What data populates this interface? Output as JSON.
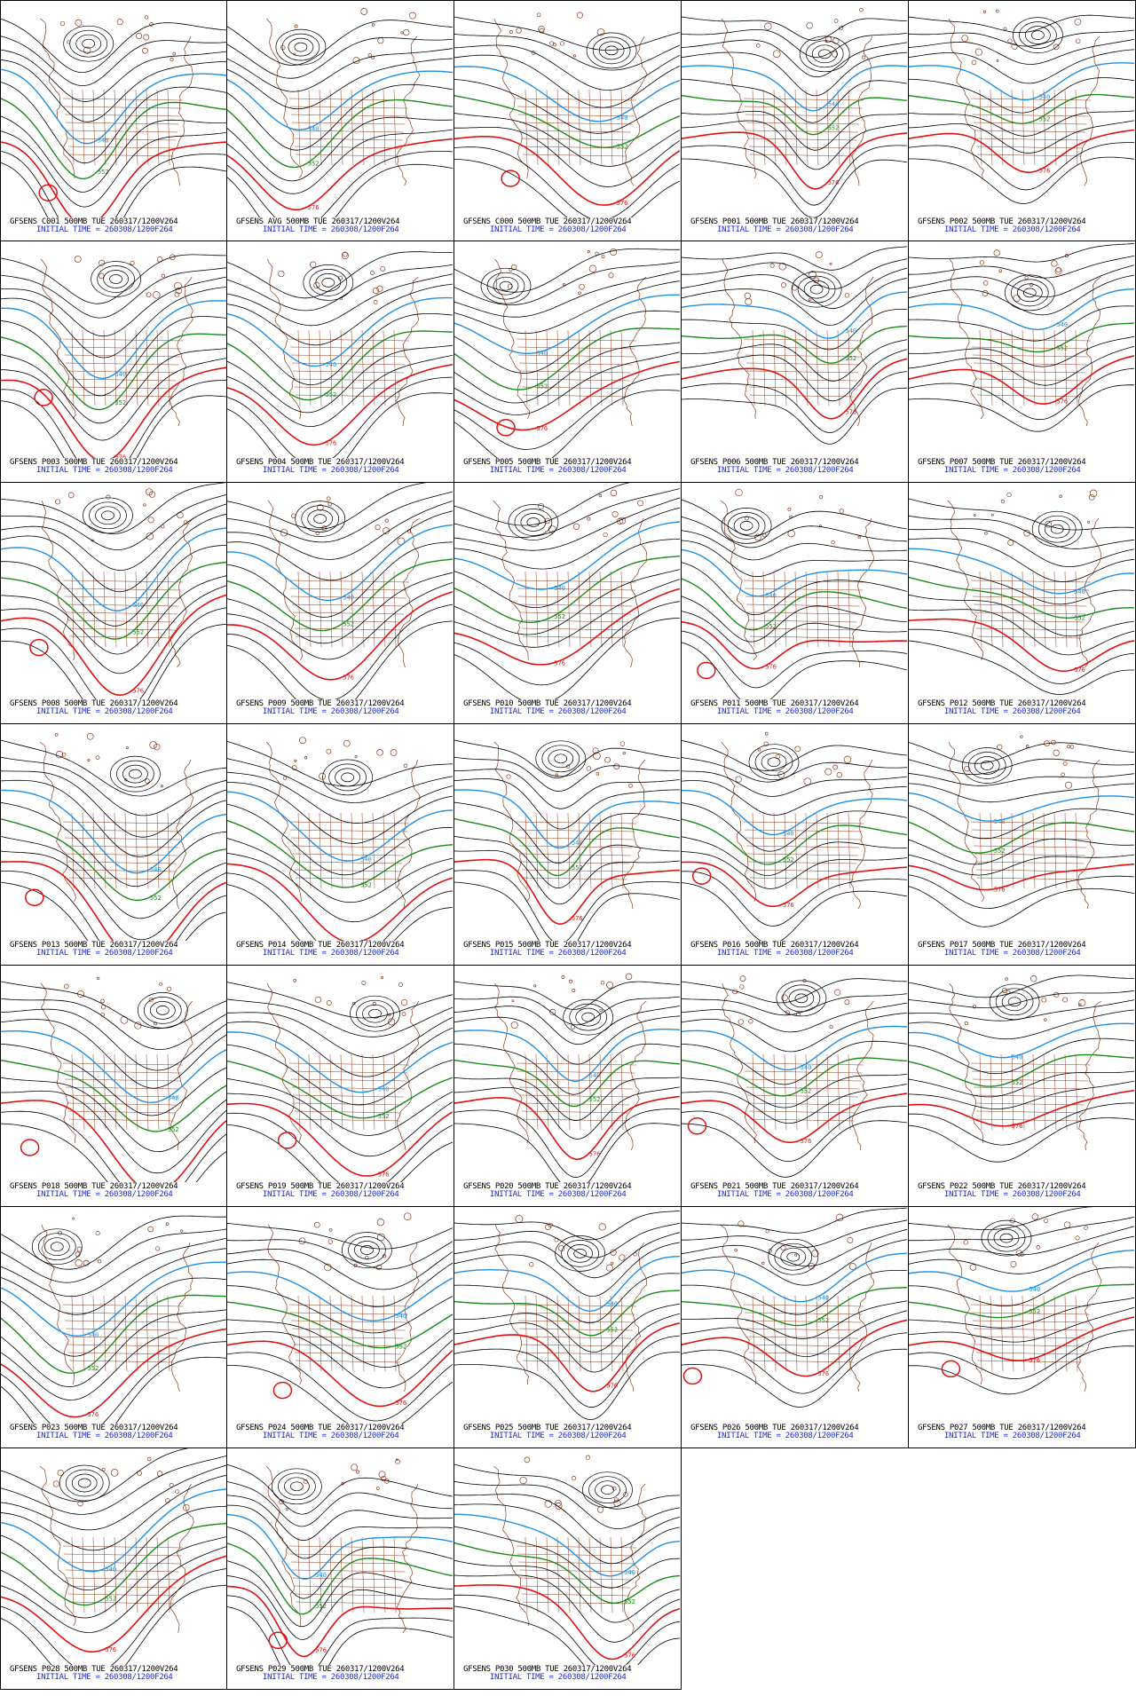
{
  "colors": {
    "contour": "#000000",
    "blue": "#1e8fe6",
    "green": "#1a8a1a",
    "red": "#e01010",
    "map": "#8b3a1a",
    "caption_line1": "#000000",
    "caption_line2": "#1b2bd6"
  },
  "contour_labels": {
    "blue": "540",
    "green": "552",
    "red": "576"
  },
  "panels": [
    {
      "title": "GFSENS C001 500MB TUE 260317/1200V264",
      "init": "INITIAL TIME = 260308/1200F264"
    },
    {
      "title": "GFSENS AVG 500MB TUE 260317/1200V264",
      "init": "INITIAL TIME = 260308/1200F264"
    },
    {
      "title": "GFSENS C000 500MB TUE 260317/1200V264",
      "init": "INITIAL TIME = 260308/1200F264"
    },
    {
      "title": "GFSENS P001 500MB TUE 260317/1200V264",
      "init": "INITIAL TIME = 260308/1200F264"
    },
    {
      "title": "GFSENS P002 500MB TUE 260317/1200V264",
      "init": "INITIAL TIME = 260308/1200F264"
    },
    {
      "title": "GFSENS P003 500MB TUE 260317/1200V264",
      "init": "INITIAL TIME = 260308/1200F264"
    },
    {
      "title": "GFSENS P004 500MB TUE 260317/1200V264",
      "init": "INITIAL TIME = 260308/1200F264"
    },
    {
      "title": "GFSENS P005 500MB TUE 260317/1200V264",
      "init": "INITIAL TIME = 260308/1200F264"
    },
    {
      "title": "GFSENS P006 500MB TUE 260317/1200V264",
      "init": "INITIAL TIME = 260308/1200F264"
    },
    {
      "title": "GFSENS P007 500MB TUE 260317/1200V264",
      "init": "INITIAL TIME = 260308/1200F264"
    },
    {
      "title": "GFSENS P008 500MB TUE 260317/1200V264",
      "init": "INITIAL TIME = 260308/1200F264"
    },
    {
      "title": "GFSENS P009 500MB TUE 260317/1200V264",
      "init": "INITIAL TIME = 260308/1200F264"
    },
    {
      "title": "GFSENS P010 500MB TUE 260317/1200V264",
      "init": "INITIAL TIME = 260308/1200F264"
    },
    {
      "title": "GFSENS P011 500MB TUE 260317/1200V264",
      "init": "INITIAL TIME = 260308/1200F264"
    },
    {
      "title": "GFSENS P012 500MB TUE 260317/1200V264",
      "init": "INITIAL TIME = 260308/1200F264"
    },
    {
      "title": "GFSENS P013 500MB TUE 260317/1200V264",
      "init": "INITIAL TIME = 260308/1200F264"
    },
    {
      "title": "GFSENS P014 500MB TUE 260317/1200V264",
      "init": "INITIAL TIME = 260308/1200F264"
    },
    {
      "title": "GFSENS P015 500MB TUE 260317/1200V264",
      "init": "INITIAL TIME = 260308/1200F264"
    },
    {
      "title": "GFSENS P016 500MB TUE 260317/1200V264",
      "init": "INITIAL TIME = 260308/1200F264"
    },
    {
      "title": "GFSENS P017 500MB TUE 260317/1200V264",
      "init": "INITIAL TIME = 260308/1200F264"
    },
    {
      "title": "GFSENS P018 500MB TUE 260317/1200V264",
      "init": "INITIAL TIME = 260308/1200F264"
    },
    {
      "title": "GFSENS P019 500MB TUE 260317/1200V264",
      "init": "INITIAL TIME = 260308/1200F264"
    },
    {
      "title": "GFSENS P020 500MB TUE 260317/1200V264",
      "init": "INITIAL TIME = 260308/1200F264"
    },
    {
      "title": "GFSENS P021 500MB TUE 260317/1200V264",
      "init": "INITIAL TIME = 260308/1200F264"
    },
    {
      "title": "GFSENS P022 500MB TUE 260317/1200V264",
      "init": "INITIAL TIME = 260308/1200F264"
    },
    {
      "title": "GFSENS P023 500MB TUE 260317/1200V264",
      "init": "INITIAL TIME = 260308/1200F264"
    },
    {
      "title": "GFSENS P024 500MB TUE 260317/1200V264",
      "init": "INITIAL TIME = 260308/1200F264"
    },
    {
      "title": "GFSENS P025 500MB TUE 260317/1200V264",
      "init": "INITIAL TIME = 260308/1200F264"
    },
    {
      "title": "GFSENS P026 500MB TUE 260317/1200V264",
      "init": "INITIAL TIME = 260308/1200F264"
    },
    {
      "title": "GFSENS P027 500MB TUE 260317/1200V264",
      "init": "INITIAL TIME = 260308/1200F264"
    },
    {
      "title": "GFSENS P028 500MB TUE 260317/1200V264",
      "init": "INITIAL TIME = 260308/1200F264"
    },
    {
      "title": "GFSENS P029 500MB TUE 260317/1200V264",
      "init": "INITIAL TIME = 260308/1200F264"
    },
    {
      "title": "GFSENS P030 500MB TUE 260317/1200V264",
      "init": "INITIAL TIME = 260308/1200F264"
    }
  ]
}
